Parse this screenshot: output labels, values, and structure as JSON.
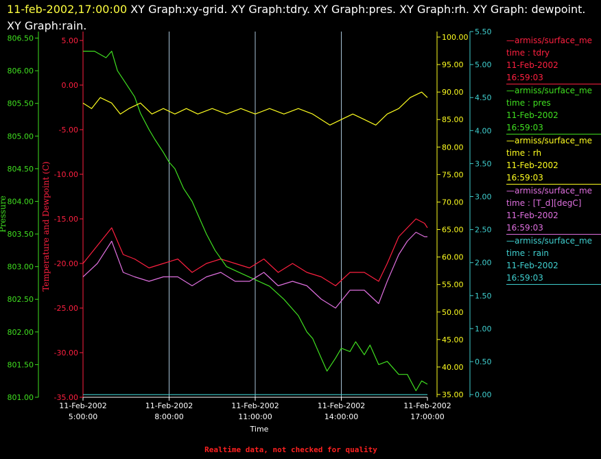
{
  "header": {
    "timestamp": "11-feb-2002,17:00:00",
    "title": "XY Graph:xy-grid.  XY Graph:tdry.  XY Graph:pres.  XY Graph:rh.  XY Graph: dewpoint.  XY Graph:rain."
  },
  "footer": {
    "note": "Realtime data, not checked for quality"
  },
  "colors": {
    "background": "#000000",
    "tdry": "#ff2040",
    "pres": "#40e020",
    "rh": "#ffff20",
    "dewpoint": "#e070e0",
    "rain": "#40d0d0",
    "grid": "#c8e8ff",
    "axis_text": "#ffffff"
  },
  "legend": [
    {
      "source": "—armiss/surface_me",
      "var": "time : tdry",
      "date": "11-Feb-2002",
      "time": "16:59:03",
      "color": "#ff2040"
    },
    {
      "source": "—armiss/surface_me",
      "var": "time : pres",
      "date": "11-Feb-2002",
      "time": "16:59:03",
      "color": "#40e020"
    },
    {
      "source": "—armiss/surface_me",
      "var": "time : rh",
      "date": "11-Feb-2002",
      "time": "16:59:03",
      "color": "#ffff20"
    },
    {
      "source": "—armiss/surface_me",
      "var": "time : [T_d][degC]",
      "date": "11-Feb-2002",
      "time": "16:59:03",
      "color": "#e070e0"
    },
    {
      "source": "—armiss/surface_me",
      "var": "time : rain",
      "date": "11-Feb-2002",
      "time": "16:59:03",
      "color": "#40d0d0"
    }
  ],
  "chart_data": {
    "type": "line",
    "xlabel": "Time",
    "x_ticks": [
      [
        "11-Feb-2002",
        "5:00:00"
      ],
      [
        "11-Feb-2002",
        "8:00:00"
      ],
      [
        "11-Feb-2002",
        "11:00:00"
      ],
      [
        "11-Feb-2002",
        "14:00:00"
      ],
      [
        "11-Feb-2002",
        "17:00:00"
      ]
    ],
    "x_range_hours": [
      5,
      17
    ],
    "grid": true,
    "axes": {
      "pressure": {
        "label": "Pressure",
        "range": [
          801.0,
          806.6
        ],
        "ticks": [
          "801.00",
          "801.50",
          "802.00",
          "802.50",
          "803.00",
          "803.50",
          "804.00",
          "804.50",
          "805.00",
          "805.50",
          "806.00",
          "806.50"
        ]
      },
      "temperature": {
        "label": "Temperature and Dewpoint (C)",
        "range": [
          -35,
          6
        ],
        "ticks": [
          "-35.00",
          "-30.00",
          "-25.00",
          "-20.00",
          "-15.00",
          "-10.00",
          "-5.00",
          "0.00",
          "5.00"
        ]
      },
      "rh": {
        "range": [
          34.5,
          101
        ],
        "ticks": [
          "35.00",
          "40.00",
          "45.00",
          "50.00",
          "55.00",
          "60.00",
          "65.00",
          "70.00",
          "75.00",
          "80.00",
          "85.00",
          "90.00",
          "95.00",
          "100.00"
        ]
      },
      "rain": {
        "range": [
          -0.04,
          5.5
        ],
        "ticks": [
          "0.00",
          "0.50",
          "1.00",
          "1.50",
          "2.00",
          "2.50",
          "3.00",
          "3.50",
          "4.00",
          "4.50",
          "5.00",
          "5.50"
        ]
      }
    },
    "series": [
      {
        "key": "tdry",
        "axis": "temperature",
        "x": [
          5.0,
          5.5,
          6.0,
          6.4,
          6.8,
          7.3,
          7.8,
          8.3,
          8.8,
          9.3,
          9.8,
          10.3,
          10.8,
          11.3,
          11.8,
          12.3,
          12.8,
          13.3,
          13.8,
          14.3,
          14.8,
          15.3,
          15.6,
          16.0,
          16.3,
          16.6,
          16.9,
          17.0
        ],
        "values": [
          -20,
          -18,
          -16,
          -19,
          -19.5,
          -20.5,
          -20,
          -19.5,
          -21,
          -20,
          -19.5,
          -20,
          -20.5,
          -19.5,
          -21,
          -20,
          -21,
          -21.5,
          -22.5,
          -21,
          -21,
          -22,
          -20,
          -17,
          -16,
          -15,
          -15.5,
          -16
        ]
      },
      {
        "key": "pres",
        "axis": "pressure",
        "x": [
          5.0,
          5.4,
          5.8,
          6.0,
          6.2,
          6.5,
          6.8,
          7.0,
          7.3,
          7.5,
          7.8,
          8.0,
          8.2,
          8.5,
          8.8,
          9.0,
          9.3,
          9.6,
          10.0,
          10.5,
          11.0,
          11.5,
          12.0,
          12.5,
          12.8,
          13.0,
          13.3,
          13.5,
          13.8,
          14.0,
          14.3,
          14.5,
          14.8,
          15.0,
          15.3,
          15.6,
          16.0,
          16.3,
          16.6,
          16.8,
          17.0
        ],
        "values": [
          806.3,
          806.3,
          806.2,
          806.3,
          806.0,
          805.8,
          805.6,
          805.35,
          805.1,
          804.95,
          804.75,
          804.6,
          804.5,
          804.2,
          804.0,
          803.8,
          803.5,
          803.25,
          803.0,
          802.9,
          802.8,
          802.7,
          802.5,
          802.25,
          802.0,
          801.9,
          801.6,
          801.4,
          801.6,
          801.75,
          801.7,
          801.85,
          801.65,
          801.8,
          801.5,
          801.55,
          801.35,
          801.35,
          801.1,
          801.25,
          801.2
        ]
      },
      {
        "key": "rh",
        "axis": "rh",
        "x": [
          5.0,
          5.3,
          5.6,
          6.0,
          6.3,
          6.6,
          7.0,
          7.4,
          7.8,
          8.2,
          8.6,
          9.0,
          9.5,
          10.0,
          10.5,
          11.0,
          11.5,
          12.0,
          12.5,
          13.0,
          13.3,
          13.6,
          14.0,
          14.4,
          14.8,
          15.2,
          15.6,
          16.0,
          16.4,
          16.8,
          17.0
        ],
        "values": [
          88,
          87,
          89,
          88,
          86,
          87,
          88,
          86,
          87,
          86,
          87,
          86,
          87,
          86,
          87,
          86,
          87,
          86,
          87,
          86,
          85,
          84,
          85,
          86,
          85,
          84,
          86,
          87,
          89,
          90,
          89
        ]
      },
      {
        "key": "dewpoint",
        "axis": "temperature",
        "x": [
          5.0,
          5.5,
          6.0,
          6.4,
          6.8,
          7.3,
          7.8,
          8.3,
          8.8,
          9.3,
          9.8,
          10.3,
          10.8,
          11.3,
          11.8,
          12.3,
          12.8,
          13.3,
          13.8,
          14.3,
          14.8,
          15.3,
          15.6,
          16.0,
          16.3,
          16.6,
          16.9,
          17.0
        ],
        "values": [
          -21.5,
          -20,
          -17.5,
          -21,
          -21.5,
          -22,
          -21.5,
          -21.5,
          -22.5,
          -21.5,
          -21,
          -22,
          -22,
          -21,
          -22.5,
          -22,
          -22.5,
          -24,
          -25,
          -23,
          -23,
          -24.5,
          -22,
          -19,
          -17.5,
          -16.5,
          -17,
          -17
        ]
      },
      {
        "key": "rain",
        "axis": "rain",
        "x": [
          5.0,
          17.0
        ],
        "values": [
          0.0,
          0.0
        ]
      }
    ]
  }
}
